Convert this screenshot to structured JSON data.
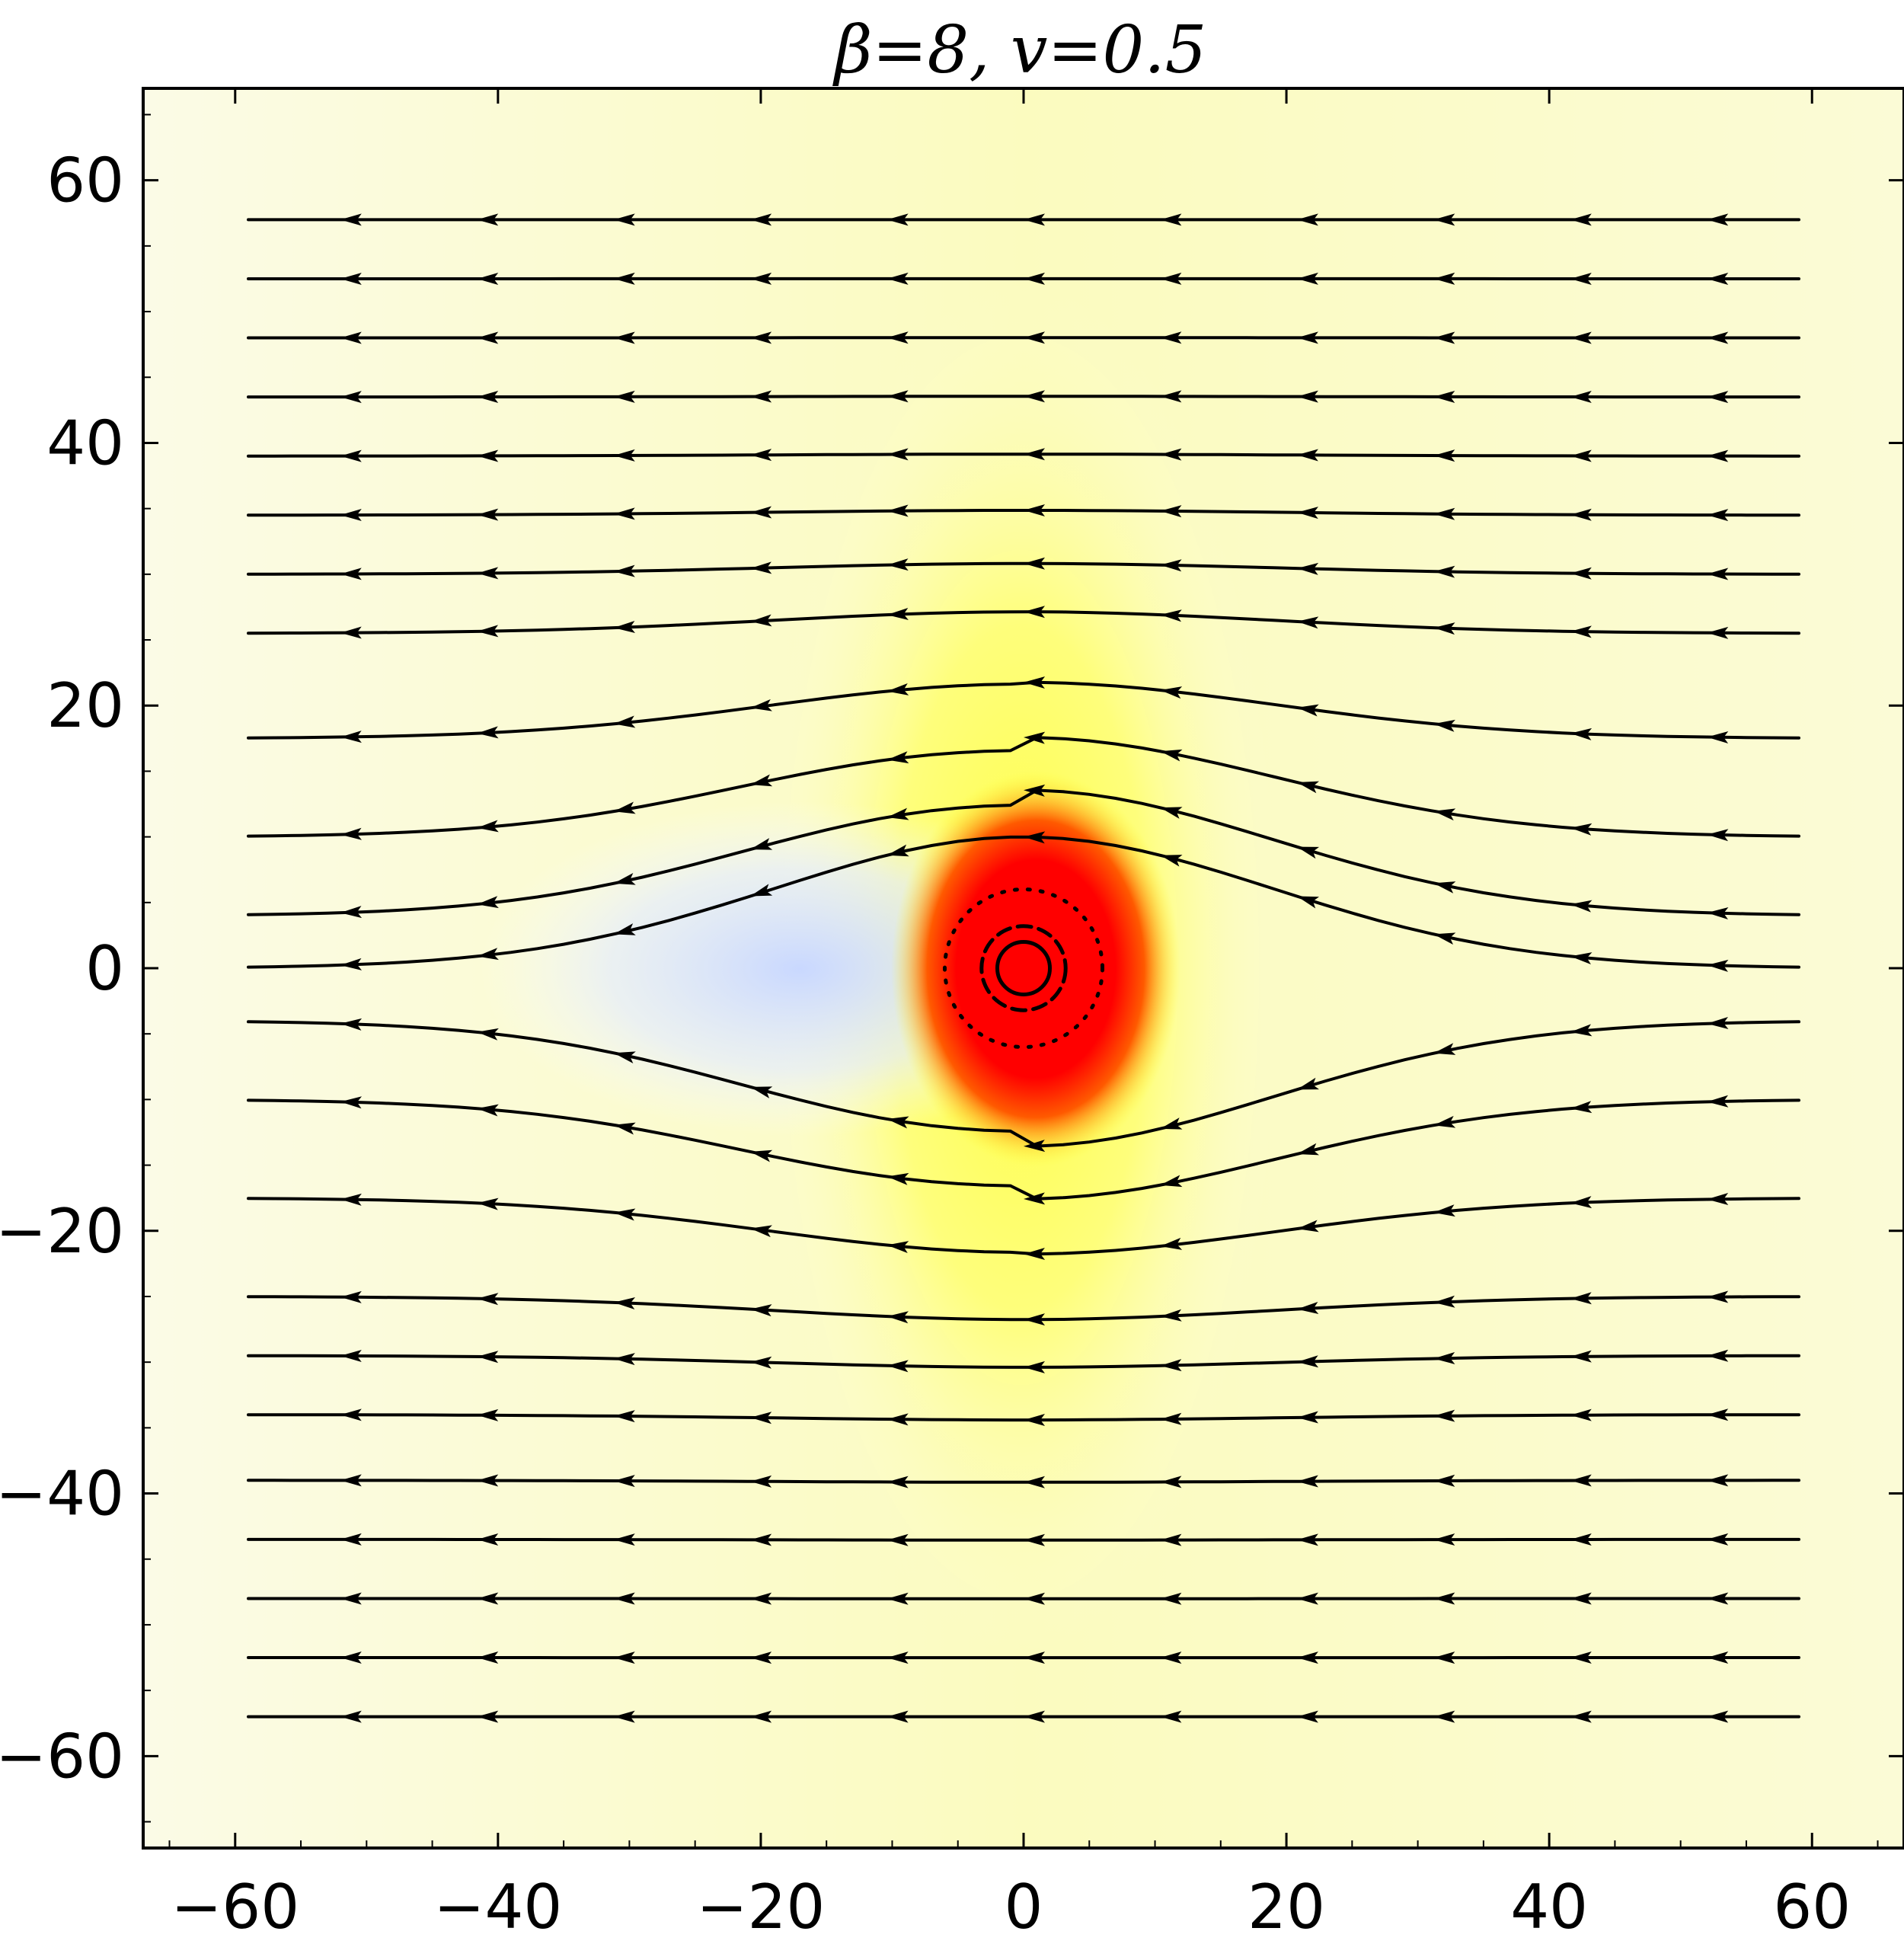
{
  "chart_data": {
    "type": "streamplot",
    "title": "β=8, v=0.5",
    "xlabel": "",
    "ylabel": "",
    "xlim": [
      -67,
      67
    ],
    "ylim": [
      -67,
      67
    ],
    "x_ticks": [
      -60,
      -40,
      -20,
      0,
      20,
      40,
      60
    ],
    "y_ticks": [
      60,
      40,
      20,
      0,
      -20,
      -40,
      -60
    ],
    "x_tick_labels": [
      "−60",
      "−40",
      "−20",
      "0",
      "20",
      "40",
      "60"
    ],
    "y_tick_labels": [
      "60",
      "40",
      "20",
      "0",
      "−20",
      "−40",
      "−60"
    ],
    "flow_direction": "negative-x",
    "density_background": {
      "colormap": [
        "#dbe6ff",
        "#ffffd8",
        "#ffff66",
        "#ff0000"
      ],
      "peak_center": [
        0,
        0
      ],
      "low_region_center": [
        -8,
        0
      ]
    },
    "circles": [
      {
        "style": "solid",
        "center": [
          0,
          0
        ],
        "radius": 2
      },
      {
        "style": "dashed",
        "center": [
          0,
          0
        ],
        "radius": 3.2
      },
      {
        "style": "dotted",
        "center": [
          0,
          0
        ],
        "radius": 6
      }
    ],
    "streamline_rows_y": [
      57,
      52.5,
      48,
      43.5,
      39,
      34.5,
      30,
      25.5,
      17.5,
      10,
      4,
      0,
      -4,
      -10,
      -17.5,
      -25,
      -29.5,
      -34,
      -39,
      -43.5,
      -48,
      -52.5,
      -57
    ]
  }
}
